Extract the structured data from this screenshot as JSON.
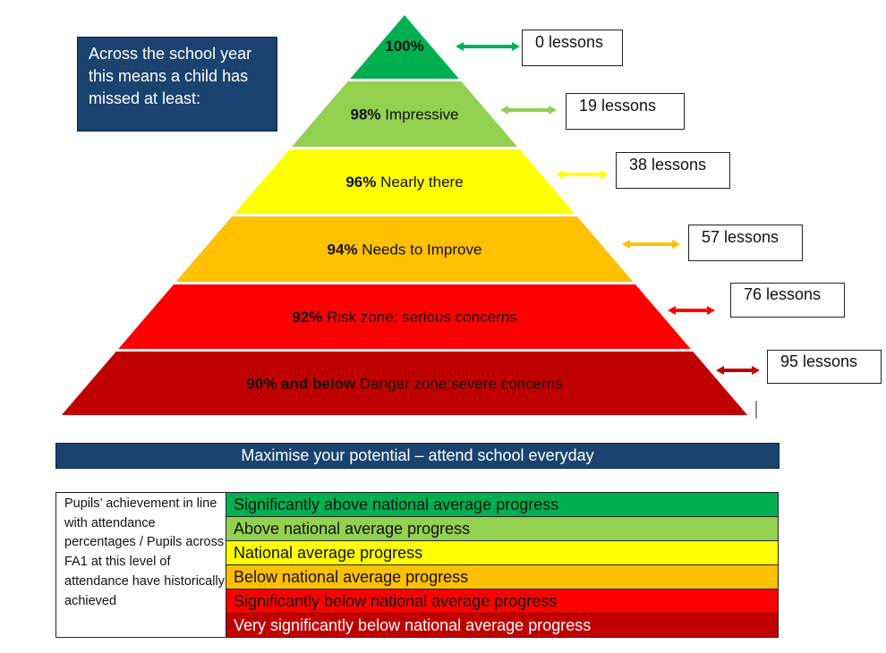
{
  "info_box": {
    "text": "Across the school year this means a child has missed at least:"
  },
  "pyramid": [
    {
      "percent": "100%",
      "label": "",
      "lessons": "0 lessons",
      "color": "#00b050",
      "text_color": "#111"
    },
    {
      "percent": "98%",
      "label": " Impressive",
      "lessons": "19 lessons",
      "color": "#92d050",
      "text_color": "#111"
    },
    {
      "percent": "96%",
      "label": " Nearly there",
      "lessons": "38 lessons",
      "color": "#ffff00",
      "text_color": "#111"
    },
    {
      "percent": "94%",
      "label": " Needs to Improve",
      "lessons": "57 lessons",
      "color": "#ffc000",
      "text_color": "#111"
    },
    {
      "percent": "92%",
      "label": " Risk zone: serious concerns",
      "lessons": "76 lessons",
      "color": "#ff0000",
      "text_color": "#111"
    },
    {
      "percent": "90% and below",
      "label": " Danger zone:severe concerns",
      "lessons": "95 lessons",
      "color": "#c00000",
      "text_color": "#111"
    }
  ],
  "banner": {
    "text": "Maximise your potential – attend school everyday"
  },
  "table": {
    "left_text": "Pupils’ achievement in line with attendance percentages  / Pupils across FA1 at this level of attendance have historically achieved",
    "rows": [
      {
        "text": "Significantly above national average progress",
        "color": "#00b050",
        "text_color": "#111"
      },
      {
        "text": "Above national average progress",
        "color": "#92d050",
        "text_color": "#111"
      },
      {
        "text": "National average progress",
        "color": "#ffff00",
        "text_color": "#111"
      },
      {
        "text": "Below national average progress",
        "color": "#ffc000",
        "text_color": "#111"
      },
      {
        "text": "Significantly below national average progress",
        "color": "#ff0000",
        "text_color": "#111"
      },
      {
        "text": "Very significantly below national average progress",
        "color": "#c00000",
        "text_color": "#fff"
      }
    ]
  }
}
